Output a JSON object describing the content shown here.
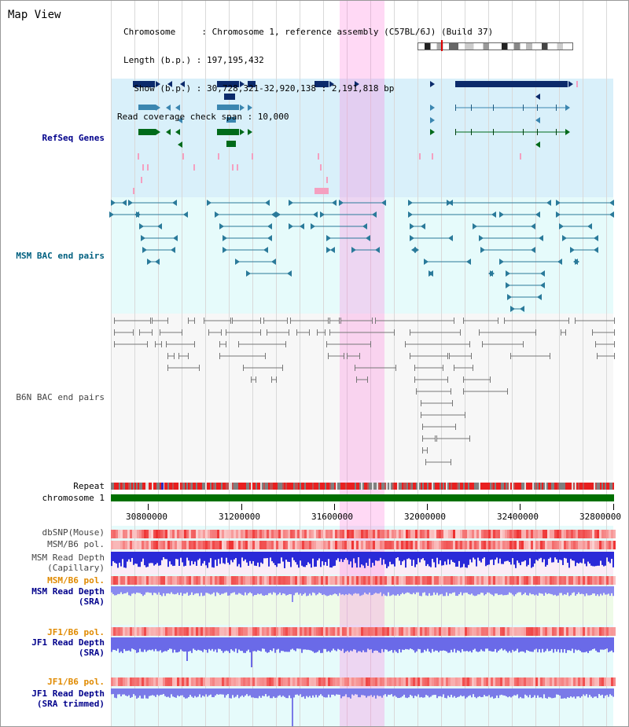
{
  "app": {
    "title": "Map View"
  },
  "info": {
    "chromosome_line": "Chromosome     : Chromosome 1, reference assembly (C57BL/6J) (Build 37)",
    "length_line": "Length (b.p.) : 197,195,432",
    "show_line": "  Show (b.p.) : 30,728,321-32,920,138 : 2,191,818 bp",
    "coverage_line": "Read coverage check span : 10,000"
  },
  "tracks": {
    "refseq": "RefSeq Genes",
    "msm_bac": "MSM BAC end pairs",
    "b6n_bac": "B6N BAC end pairs",
    "repeat": "Repeat",
    "chromosome": "chromosome 1",
    "dbsnp": "dbSNP(Mouse)",
    "msm_b6_pol_1": "MSM/B6 pol.",
    "msm_read_depth_cap_1": "MSM Read Depth",
    "msm_read_depth_cap_2": "(Capillary)",
    "msm_b6_pol_2": "MSM/B6 pol.",
    "msm_read_depth_sra_1": "MSM Read Depth",
    "msm_read_depth_sra_2": "(SRA)",
    "jf1_b6_pol_1": "JF1/B6 pol.",
    "jf1_read_depth_sra_1": "JF1 Read Depth",
    "jf1_read_depth_sra_2": "(SRA)",
    "jf1_b6_pol_2": "JF1/B6 pol.",
    "jf1_read_depth_trim_1": "JF1 Read Depth",
    "jf1_read_depth_trim_2": "(SRA trimmed)"
  },
  "axis": {
    "ticks": [
      "30800000",
      "31200000",
      "31600000",
      "32000000",
      "32400000",
      "32800000"
    ]
  },
  "colors": {
    "refseq_bg": "#d9f0fa",
    "msm_bg": "#e6fbfb",
    "b6n_bg": "#f7f7f7",
    "lower_bg": "#e6fbfb",
    "highlight": "#f7c4ee",
    "chromosome_green": "#007000",
    "label_blue": "#00008b",
    "label_teal": "#006080",
    "label_orange": "#e08a00"
  }
}
